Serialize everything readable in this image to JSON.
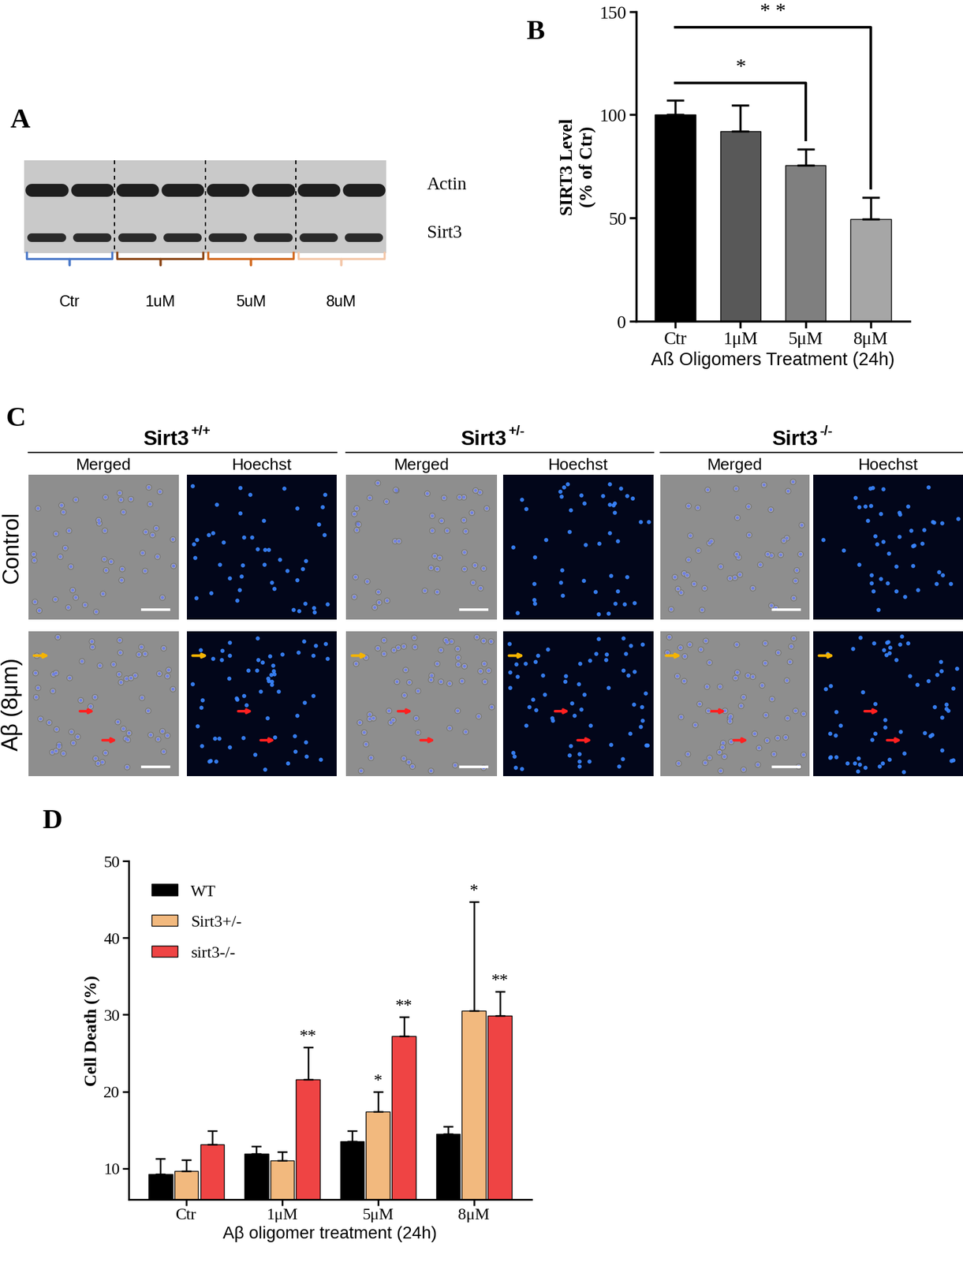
{
  "panel_labels": [
    "A",
    "B",
    "C",
    "D"
  ],
  "blot": {
    "bands": [
      "Actin",
      "Sirt3"
    ],
    "groups": [
      "Ctr",
      "1uM",
      "5uM",
      "8uM"
    ]
  },
  "micrographs": {
    "genotypes": [
      {
        "name": "Sirt3",
        "superscript": "+/+"
      },
      {
        "name": "Sirt3",
        "superscript": "+/-"
      },
      {
        "name": "Sirt3",
        "superscript": "-/-"
      }
    ],
    "channels": [
      "Merged",
      "Hoechst"
    ],
    "conditions": [
      "Control",
      "Aβ (8μm)"
    ]
  },
  "chart_data": [
    {
      "type": "bar",
      "categories": [
        "Ctr",
        "1μM",
        "5μM",
        "8μM"
      ],
      "values": [
        100,
        92,
        75.5,
        49.5
      ],
      "errors": [
        7,
        12.5,
        8,
        10.5
      ],
      "colors": [
        "#000000",
        "#585858",
        "#7f7f7f",
        "#a6a6a6"
      ],
      "y_label": "SIRT3 Level\n(% of Ctr)",
      "x_label": "Aß Oligomers Treatment (24h)",
      "ylim": [
        0,
        150
      ],
      "yticks": [
        0,
        50,
        100,
        150
      ],
      "annotations": [
        {
          "text": "*",
          "from": "Ctr",
          "to": "5μM"
        },
        {
          "text": "* *",
          "from": "Ctr",
          "to": "8μM"
        }
      ]
    },
    {
      "type": "bar",
      "categories": [
        "Ctr",
        "1μM",
        "5μM",
        "8μM"
      ],
      "series": [
        {
          "name": "WT",
          "color": "#000000",
          "values": [
            9.3,
            11.9,
            13.5,
            14.5
          ],
          "errors": [
            2.0,
            1.0,
            1.4,
            1.0
          ],
          "significance": [
            null,
            null,
            null,
            null
          ]
        },
        {
          "name": "Sirt3+/-",
          "color": "#f2b97e",
          "values": [
            9.7,
            11.0,
            17.4,
            30.5
          ],
          "errors": [
            1.4,
            1.2,
            2.6,
            14.2
          ],
          "significance": [
            null,
            null,
            "*",
            "*"
          ]
        },
        {
          "name": "sirt3-/-",
          "color": "#ef4444",
          "values": [
            13.1,
            21.6,
            27.2,
            29.9
          ],
          "errors": [
            1.8,
            4.2,
            2.5,
            3.1
          ],
          "significance": [
            null,
            "**",
            "**",
            "**"
          ]
        }
      ],
      "x_label": "Aβ oligomer treatment (24h)",
      "y_label": "Cell Death (%)",
      "ylim": [
        6,
        50
      ],
      "yticks": [
        10,
        20,
        30,
        40,
        50
      ],
      "legend": "upper left"
    }
  ]
}
